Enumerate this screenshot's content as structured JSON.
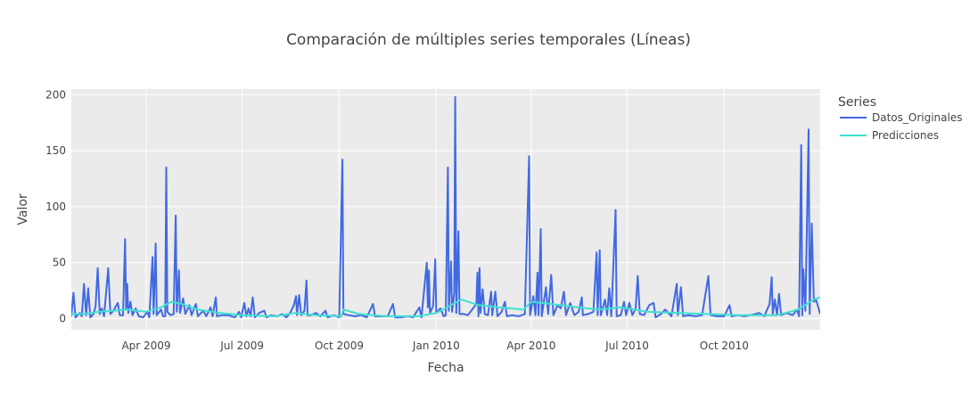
{
  "chart_data": {
    "type": "line",
    "title": "Comparación de múltiples series temporales (Líneas)",
    "xlabel": "Fecha",
    "ylabel": "Valor",
    "x_range": [
      "2009-01-20",
      "2010-12-31"
    ],
    "ylim": [
      -10,
      205
    ],
    "x_ticks": [
      {
        "date": "2009-04-01",
        "label": "Apr 2009"
      },
      {
        "date": "2009-07-01",
        "label": "Jul 2009"
      },
      {
        "date": "2009-10-01",
        "label": "Oct 2009"
      },
      {
        "date": "2010-01-01",
        "label": "Jan 2010"
      },
      {
        "date": "2010-04-01",
        "label": "Apr 2010"
      },
      {
        "date": "2010-07-01",
        "label": "Jul 2010"
      },
      {
        "date": "2010-10-01",
        "label": "Oct 2010"
      }
    ],
    "y_ticks": [
      0,
      50,
      100,
      150,
      200
    ],
    "grid": true,
    "background": "#ebebeb",
    "legend": {
      "title": "Series",
      "placement": "top-right"
    },
    "series": [
      {
        "name": "Datos_Originales",
        "color": "#4169e1",
        "points": [
          [
            "2009-01-20",
            2
          ],
          [
            "2009-01-22",
            23
          ],
          [
            "2009-01-24",
            1
          ],
          [
            "2009-01-28",
            5
          ],
          [
            "2009-01-30",
            2
          ],
          [
            "2009-02-01",
            31
          ],
          [
            "2009-02-03",
            3
          ],
          [
            "2009-02-05",
            27
          ],
          [
            "2009-02-07",
            1
          ],
          [
            "2009-02-10",
            4
          ],
          [
            "2009-02-12",
            11
          ],
          [
            "2009-02-14",
            45
          ],
          [
            "2009-02-16",
            4
          ],
          [
            "2009-02-18",
            9
          ],
          [
            "2009-02-20",
            2
          ],
          [
            "2009-02-24",
            45
          ],
          [
            "2009-02-26",
            4
          ],
          [
            "2009-03-01",
            7
          ],
          [
            "2009-03-05",
            14
          ],
          [
            "2009-03-07",
            3
          ],
          [
            "2009-03-10",
            3
          ],
          [
            "2009-03-12",
            71
          ],
          [
            "2009-03-13",
            8
          ],
          [
            "2009-03-14",
            31
          ],
          [
            "2009-03-15",
            5
          ],
          [
            "2009-03-17",
            15
          ],
          [
            "2009-03-19",
            3
          ],
          [
            "2009-03-22",
            9
          ],
          [
            "2009-03-25",
            2
          ],
          [
            "2009-03-29",
            1
          ],
          [
            "2009-04-02",
            6
          ],
          [
            "2009-04-04",
            1
          ],
          [
            "2009-04-07",
            55
          ],
          [
            "2009-04-08",
            4
          ],
          [
            "2009-04-10",
            67
          ],
          [
            "2009-04-11",
            3
          ],
          [
            "2009-04-15",
            8
          ],
          [
            "2009-04-17",
            2
          ],
          [
            "2009-04-19",
            2
          ],
          [
            "2009-04-20",
            135
          ],
          [
            "2009-04-21",
            6
          ],
          [
            "2009-04-24",
            3
          ],
          [
            "2009-04-27",
            4
          ],
          [
            "2009-04-29",
            92
          ],
          [
            "2009-04-30",
            6
          ],
          [
            "2009-05-02",
            43
          ],
          [
            "2009-05-03",
            5
          ],
          [
            "2009-05-06",
            18
          ],
          [
            "2009-05-08",
            4
          ],
          [
            "2009-05-12",
            12
          ],
          [
            "2009-05-14",
            3
          ],
          [
            "2009-05-18",
            13
          ],
          [
            "2009-05-20",
            2
          ],
          [
            "2009-05-25",
            7
          ],
          [
            "2009-05-28",
            2
          ],
          [
            "2009-06-01",
            10
          ],
          [
            "2009-06-03",
            2
          ],
          [
            "2009-06-06",
            19
          ],
          [
            "2009-06-07",
            2
          ],
          [
            "2009-06-12",
            3
          ],
          [
            "2009-06-18",
            3
          ],
          [
            "2009-06-24",
            1
          ],
          [
            "2009-06-28",
            6
          ],
          [
            "2009-06-30",
            1
          ],
          [
            "2009-07-03",
            14
          ],
          [
            "2009-07-05",
            2
          ],
          [
            "2009-07-07",
            9
          ],
          [
            "2009-07-09",
            2
          ],
          [
            "2009-07-11",
            19
          ],
          [
            "2009-07-13",
            1
          ],
          [
            "2009-07-17",
            5
          ],
          [
            "2009-07-22",
            7
          ],
          [
            "2009-07-24",
            1
          ],
          [
            "2009-07-28",
            3
          ],
          [
            "2009-08-03",
            2
          ],
          [
            "2009-08-08",
            4
          ],
          [
            "2009-08-12",
            1
          ],
          [
            "2009-08-16",
            6
          ],
          [
            "2009-08-19",
            12
          ],
          [
            "2009-08-21",
            20
          ],
          [
            "2009-08-22",
            3
          ],
          [
            "2009-08-24",
            21
          ],
          [
            "2009-08-26",
            3
          ],
          [
            "2009-08-29",
            7
          ],
          [
            "2009-08-31",
            34
          ],
          [
            "2009-09-01",
            3
          ],
          [
            "2009-09-04",
            3
          ],
          [
            "2009-09-09",
            5
          ],
          [
            "2009-09-13",
            2
          ],
          [
            "2009-09-18",
            7
          ],
          [
            "2009-09-20",
            1
          ],
          [
            "2009-09-26",
            3
          ],
          [
            "2009-10-01",
            1
          ],
          [
            "2009-10-04",
            142
          ],
          [
            "2009-10-05",
            4
          ],
          [
            "2009-10-10",
            3
          ],
          [
            "2009-10-16",
            2
          ],
          [
            "2009-10-22",
            3
          ],
          [
            "2009-10-27",
            1
          ],
          [
            "2009-11-02",
            13
          ],
          [
            "2009-11-04",
            2
          ],
          [
            "2009-11-10",
            2
          ],
          [
            "2009-11-16",
            2
          ],
          [
            "2009-11-21",
            13
          ],
          [
            "2009-11-23",
            1
          ],
          [
            "2009-11-29",
            1
          ],
          [
            "2009-12-05",
            2
          ],
          [
            "2009-12-10",
            1
          ],
          [
            "2009-12-16",
            10
          ],
          [
            "2009-12-18",
            1
          ],
          [
            "2009-12-23",
            50
          ],
          [
            "2009-12-24",
            10
          ],
          [
            "2009-12-25",
            43
          ],
          [
            "2009-12-26",
            5
          ],
          [
            "2009-12-29",
            11
          ],
          [
            "2009-12-31",
            53
          ],
          [
            "2010-01-01",
            5
          ],
          [
            "2010-01-05",
            9
          ],
          [
            "2010-01-08",
            2
          ],
          [
            "2010-01-10",
            3
          ],
          [
            "2010-01-12",
            135
          ],
          [
            "2010-01-13",
            7
          ],
          [
            "2010-01-15",
            51
          ],
          [
            "2010-01-16",
            6
          ],
          [
            "2010-01-18",
            23
          ],
          [
            "2010-01-19",
            198
          ],
          [
            "2010-01-20",
            5
          ],
          [
            "2010-01-22",
            78
          ],
          [
            "2010-01-23",
            4
          ],
          [
            "2010-01-27",
            4
          ],
          [
            "2010-01-31",
            3
          ],
          [
            "2010-02-04",
            8
          ],
          [
            "2010-02-08",
            13
          ],
          [
            "2010-02-09",
            41
          ],
          [
            "2010-02-10",
            2
          ],
          [
            "2010-02-11",
            45
          ],
          [
            "2010-02-12",
            5
          ],
          [
            "2010-02-14",
            26
          ],
          [
            "2010-02-16",
            4
          ],
          [
            "2010-02-19",
            3
          ],
          [
            "2010-02-22",
            24
          ],
          [
            "2010-02-23",
            3
          ],
          [
            "2010-02-26",
            24
          ],
          [
            "2010-02-28",
            2
          ],
          [
            "2010-03-04",
            6
          ],
          [
            "2010-03-07",
            15
          ],
          [
            "2010-03-09",
            2
          ],
          [
            "2010-03-14",
            3
          ],
          [
            "2010-03-20",
            2
          ],
          [
            "2010-03-26",
            4
          ],
          [
            "2010-03-30",
            145
          ],
          [
            "2010-03-31",
            3
          ],
          [
            "2010-04-03",
            20
          ],
          [
            "2010-04-05",
            3
          ],
          [
            "2010-04-07",
            41
          ],
          [
            "2010-04-08",
            3
          ],
          [
            "2010-04-10",
            80
          ],
          [
            "2010-04-11",
            2
          ],
          [
            "2010-04-15",
            28
          ],
          [
            "2010-04-17",
            4
          ],
          [
            "2010-04-20",
            39
          ],
          [
            "2010-04-22",
            3
          ],
          [
            "2010-04-26",
            12
          ],
          [
            "2010-04-29",
            9
          ],
          [
            "2010-05-02",
            24
          ],
          [
            "2010-05-04",
            3
          ],
          [
            "2010-05-08",
            14
          ],
          [
            "2010-05-12",
            3
          ],
          [
            "2010-05-16",
            6
          ],
          [
            "2010-05-19",
            19
          ],
          [
            "2010-05-20",
            3
          ],
          [
            "2010-05-25",
            4
          ],
          [
            "2010-05-30",
            6
          ],
          [
            "2010-06-02",
            59
          ],
          [
            "2010-06-03",
            3
          ],
          [
            "2010-06-05",
            61
          ],
          [
            "2010-06-06",
            3
          ],
          [
            "2010-06-10",
            17
          ],
          [
            "2010-06-12",
            3
          ],
          [
            "2010-06-14",
            27
          ],
          [
            "2010-06-16",
            2
          ],
          [
            "2010-06-20",
            97
          ],
          [
            "2010-06-21",
            2
          ],
          [
            "2010-06-25",
            3
          ],
          [
            "2010-06-28",
            15
          ],
          [
            "2010-06-30",
            3
          ],
          [
            "2010-07-03",
            14
          ],
          [
            "2010-07-06",
            3
          ],
          [
            "2010-07-09",
            9
          ],
          [
            "2010-07-11",
            38
          ],
          [
            "2010-07-13",
            4
          ],
          [
            "2010-07-17",
            3
          ],
          [
            "2010-07-22",
            12
          ],
          [
            "2010-07-26",
            14
          ],
          [
            "2010-07-28",
            1
          ],
          [
            "2010-08-02",
            4
          ],
          [
            "2010-08-06",
            8
          ],
          [
            "2010-08-12",
            2
          ],
          [
            "2010-08-17",
            31
          ],
          [
            "2010-08-18",
            3
          ],
          [
            "2010-08-21",
            28
          ],
          [
            "2010-08-23",
            2
          ],
          [
            "2010-08-28",
            3
          ],
          [
            "2010-09-04",
            2
          ],
          [
            "2010-09-10",
            3
          ],
          [
            "2010-09-16",
            38
          ],
          [
            "2010-09-18",
            3
          ],
          [
            "2010-09-24",
            2
          ],
          [
            "2010-10-01",
            2
          ],
          [
            "2010-10-06",
            12
          ],
          [
            "2010-10-08",
            2
          ],
          [
            "2010-10-14",
            3
          ],
          [
            "2010-10-20",
            2
          ],
          [
            "2010-10-26",
            3
          ],
          [
            "2010-11-03",
            5
          ],
          [
            "2010-11-08",
            2
          ],
          [
            "2010-11-13",
            13
          ],
          [
            "2010-11-15",
            37
          ],
          [
            "2010-11-16",
            4
          ],
          [
            "2010-11-18",
            17
          ],
          [
            "2010-11-20",
            3
          ],
          [
            "2010-11-22",
            22
          ],
          [
            "2010-11-24",
            3
          ],
          [
            "2010-11-29",
            5
          ],
          [
            "2010-12-05",
            3
          ],
          [
            "2010-12-09",
            8
          ],
          [
            "2010-12-11",
            2
          ],
          [
            "2010-12-13",
            155
          ],
          [
            "2010-12-14",
            3
          ],
          [
            "2010-12-15",
            44
          ],
          [
            "2010-12-17",
            7
          ],
          [
            "2010-12-20",
            169
          ],
          [
            "2010-12-21",
            4
          ],
          [
            "2010-12-23",
            85
          ],
          [
            "2010-12-25",
            15
          ],
          [
            "2010-12-27",
            17
          ],
          [
            "2010-12-31",
            4
          ]
        ]
      },
      {
        "name": "Predicciones",
        "color": "#40e0d0",
        "points": [
          [
            "2009-01-20",
            4
          ],
          [
            "2009-02-01",
            4
          ],
          [
            "2009-02-15",
            6
          ],
          [
            "2009-03-01",
            7
          ],
          [
            "2009-03-15",
            8
          ],
          [
            "2009-04-01",
            6
          ],
          [
            "2009-04-15",
            10
          ],
          [
            "2009-04-25",
            15
          ],
          [
            "2009-05-05",
            13
          ],
          [
            "2009-05-20",
            8
          ],
          [
            "2009-06-10",
            5
          ],
          [
            "2009-07-01",
            3
          ],
          [
            "2009-08-01",
            2
          ],
          [
            "2009-08-20",
            5
          ],
          [
            "2009-09-10",
            3
          ],
          [
            "2009-10-03",
            2
          ],
          [
            "2009-10-05",
            8
          ],
          [
            "2009-10-20",
            4
          ],
          [
            "2009-11-15",
            2
          ],
          [
            "2009-12-15",
            2
          ],
          [
            "2010-01-01",
            5
          ],
          [
            "2010-01-15",
            12
          ],
          [
            "2010-01-25",
            17
          ],
          [
            "2010-02-10",
            12
          ],
          [
            "2010-03-01",
            10
          ],
          [
            "2010-03-25",
            8
          ],
          [
            "2010-04-01",
            15
          ],
          [
            "2010-04-20",
            13
          ],
          [
            "2010-05-15",
            10
          ],
          [
            "2010-06-05",
            8
          ],
          [
            "2010-06-25",
            10
          ],
          [
            "2010-07-20",
            6
          ],
          [
            "2010-08-20",
            5
          ],
          [
            "2010-09-15",
            4
          ],
          [
            "2010-10-15",
            3
          ],
          [
            "2010-11-20",
            3
          ],
          [
            "2010-12-10",
            8
          ],
          [
            "2010-12-25",
            17
          ],
          [
            "2010-12-31",
            19
          ]
        ]
      }
    ]
  }
}
